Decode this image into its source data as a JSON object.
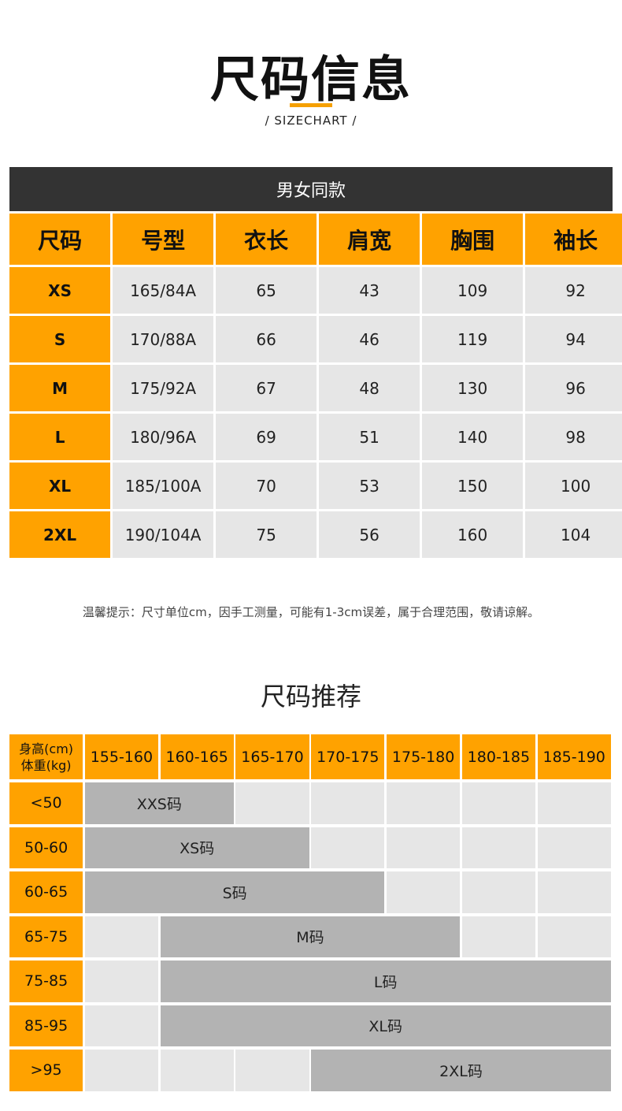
{
  "header": {
    "title": "尺码信息",
    "subtitle": "/ SIZECHART /"
  },
  "size_table": {
    "caption": "男女同款",
    "columns": [
      "尺码",
      "号型",
      "衣长",
      "肩宽",
      "胸围",
      "袖长"
    ],
    "rows": [
      [
        "XS",
        "165/84A",
        65,
        43,
        109,
        92
      ],
      [
        "S",
        "170/88A",
        66,
        46,
        119,
        94
      ],
      [
        "M",
        "175/92A",
        67,
        48,
        130,
        96
      ],
      [
        "L",
        "180/96A",
        69,
        51,
        140,
        98
      ],
      [
        "XL",
        "185/100A",
        70,
        53,
        150,
        100
      ],
      [
        "2XL",
        "190/104A",
        75,
        56,
        160,
        104
      ]
    ]
  },
  "note": "温馨提示：尺寸单位cm，因手工测量，可能有1-3cm误差，属于合理范围，敬请谅解。",
  "recommend": {
    "title": "尺码推荐",
    "corner": [
      "身高(cm)",
      "体重(kg)"
    ],
    "heights": [
      "155-160",
      "160-165",
      "165-170",
      "170-175",
      "175-180",
      "180-185",
      "185-190"
    ],
    "rows": [
      {
        "weight": "<50",
        "size": "XXS码",
        "first": 0,
        "last": 1
      },
      {
        "weight": "50-60",
        "size": "XS码",
        "first": 0,
        "last": 2
      },
      {
        "weight": "60-65",
        "size": "S码",
        "first": 0,
        "last": 3
      },
      {
        "weight": "65-75",
        "size": "M码",
        "first": 1,
        "last": 4
      },
      {
        "weight": "75-85",
        "size": "L码",
        "first": 1,
        "last": 6
      },
      {
        "weight": "85-95",
        "size": "XL码",
        "first": 1,
        "last": 6
      },
      {
        "weight": ">95",
        "size": "2XL码",
        "first": 3,
        "last": 6
      }
    ]
  }
}
